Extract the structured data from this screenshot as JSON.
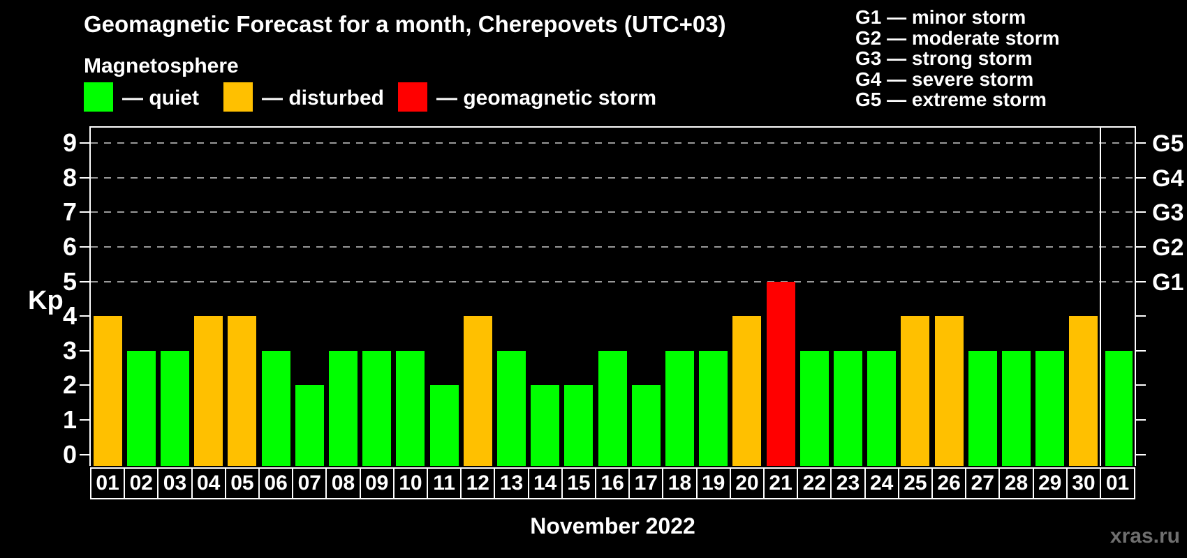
{
  "title": "Geomagnetic Forecast for a month, Cherepovets (UTC+03)",
  "subtitle": "Magnetosphere",
  "legend": {
    "items": [
      {
        "name": "quiet",
        "label": "— quiet",
        "color": "#00ff00"
      },
      {
        "name": "disturbed",
        "label": "— disturbed",
        "color": "#ffc000"
      },
      {
        "name": "storm",
        "label": "— geomagnetic storm",
        "color": "#ff0000"
      }
    ]
  },
  "g_legend": [
    "G1 — minor storm",
    "G2 — moderate storm",
    "G3 — strong storm",
    "G4 — severe storm",
    "G5 — extreme storm"
  ],
  "footer": {
    "month_label": "November 2022",
    "watermark": "xras.ru"
  },
  "chart_data": {
    "type": "bar",
    "title": "Geomagnetic Forecast for a month, Cherepovets (UTC+03)",
    "ylabel": "Kp",
    "xlabel": "November 2022",
    "ylim": [
      0,
      9.5
    ],
    "grid": "dashed horizontal lines at Kp 5-9 only",
    "legend_position": "top-left",
    "yticks": [
      0,
      1,
      2,
      3,
      4,
      5,
      6,
      7,
      8,
      9
    ],
    "gridlines_at": [
      5,
      6,
      7,
      8,
      9
    ],
    "right_axis_labels": [
      {
        "kp": 5,
        "label": "G1"
      },
      {
        "kp": 6,
        "label": "G2"
      },
      {
        "kp": 7,
        "label": "G3"
      },
      {
        "kp": 8,
        "label": "G4"
      },
      {
        "kp": 9,
        "label": "G5"
      }
    ],
    "categories": [
      "01",
      "02",
      "03",
      "04",
      "05",
      "06",
      "07",
      "08",
      "09",
      "10",
      "11",
      "12",
      "13",
      "14",
      "15",
      "16",
      "17",
      "18",
      "19",
      "20",
      "21",
      "22",
      "23",
      "24",
      "25",
      "26",
      "27",
      "28",
      "29",
      "30",
      "01"
    ],
    "values": [
      4,
      3,
      3,
      4,
      4,
      3,
      2,
      3,
      3,
      3,
      2,
      4,
      3,
      2,
      2,
      3,
      2,
      3,
      3,
      4,
      5,
      3,
      3,
      3,
      4,
      4,
      3,
      3,
      3,
      4,
      3
    ],
    "statuses": [
      "disturbed",
      "quiet",
      "quiet",
      "disturbed",
      "disturbed",
      "quiet",
      "quiet",
      "quiet",
      "quiet",
      "quiet",
      "quiet",
      "disturbed",
      "quiet",
      "quiet",
      "quiet",
      "quiet",
      "quiet",
      "quiet",
      "quiet",
      "disturbed",
      "storm",
      "quiet",
      "quiet",
      "quiet",
      "disturbed",
      "disturbed",
      "quiet",
      "quiet",
      "quiet",
      "disturbed",
      "quiet"
    ],
    "colors": {
      "quiet": "#00ff00",
      "disturbed": "#ffc000",
      "storm": "#ff0000"
    },
    "separator_after_index": 29,
    "separator_meaning": "month boundary: last bar is 01 of next month"
  }
}
